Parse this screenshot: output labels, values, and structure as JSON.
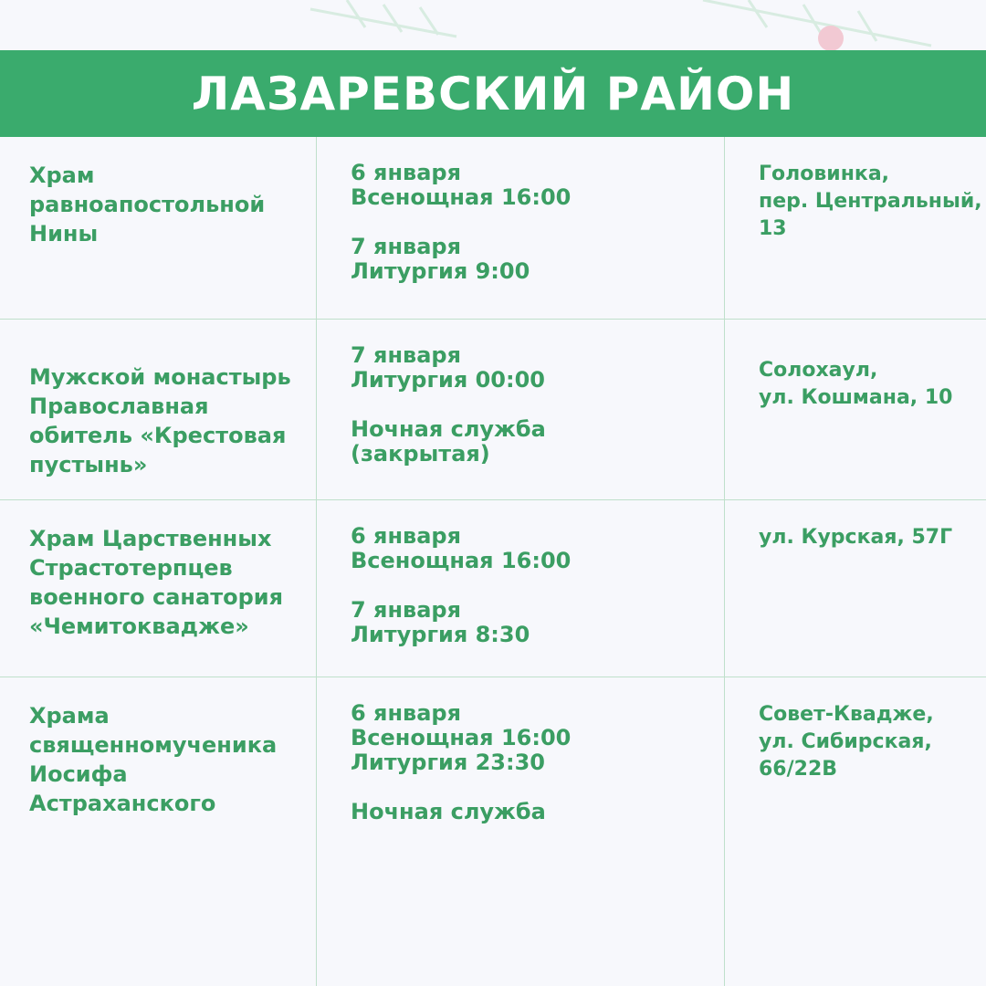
{
  "header": {
    "title": "ЛАЗАРЕВСКИЙ РАЙОН"
  },
  "table": {
    "rows": [
      {
        "name": [
          "Храм",
          "равноапостольной",
          "Нины"
        ],
        "schedule": [
          [
            "6 января",
            "Всенощная 16:00"
          ],
          [
            "7 января",
            "Литургия 9:00"
          ]
        ],
        "address": [
          "Головинка,",
          "пер. Центральный,",
          "13"
        ]
      },
      {
        "name": [
          "Мужской монастырь",
          "Православная",
          "обитель «Крестовая",
          "пустынь»"
        ],
        "schedule": [
          [
            "7 января",
            "Литургия 00:00"
          ],
          [
            "Ночная служба",
            "(закрытая)"
          ]
        ],
        "address": [
          "Солохаул,",
          "ул. Кошмана, 10"
        ]
      },
      {
        "name": [
          "Храм Царственных",
          "Страстотерпцев",
          "военного санатория",
          "«Чемитоквадже»"
        ],
        "schedule": [
          [
            "6 января",
            "Всенощная 16:00"
          ],
          [
            "7 января",
            "Литургия 8:30"
          ]
        ],
        "address": [
          "ул. Курская, 57Г"
        ]
      },
      {
        "name": [
          "Храма",
          "священномученика",
          "Иосифа",
          "Астраханского"
        ],
        "schedule": [
          [
            "6 января",
            "Всенощная 16:00",
            "Литургия 23:30"
          ],
          [
            "Ночная служба"
          ]
        ],
        "address": [
          "Совет-Квадже,",
          "ул. Сибирская,",
          "66/22В"
        ]
      }
    ]
  }
}
